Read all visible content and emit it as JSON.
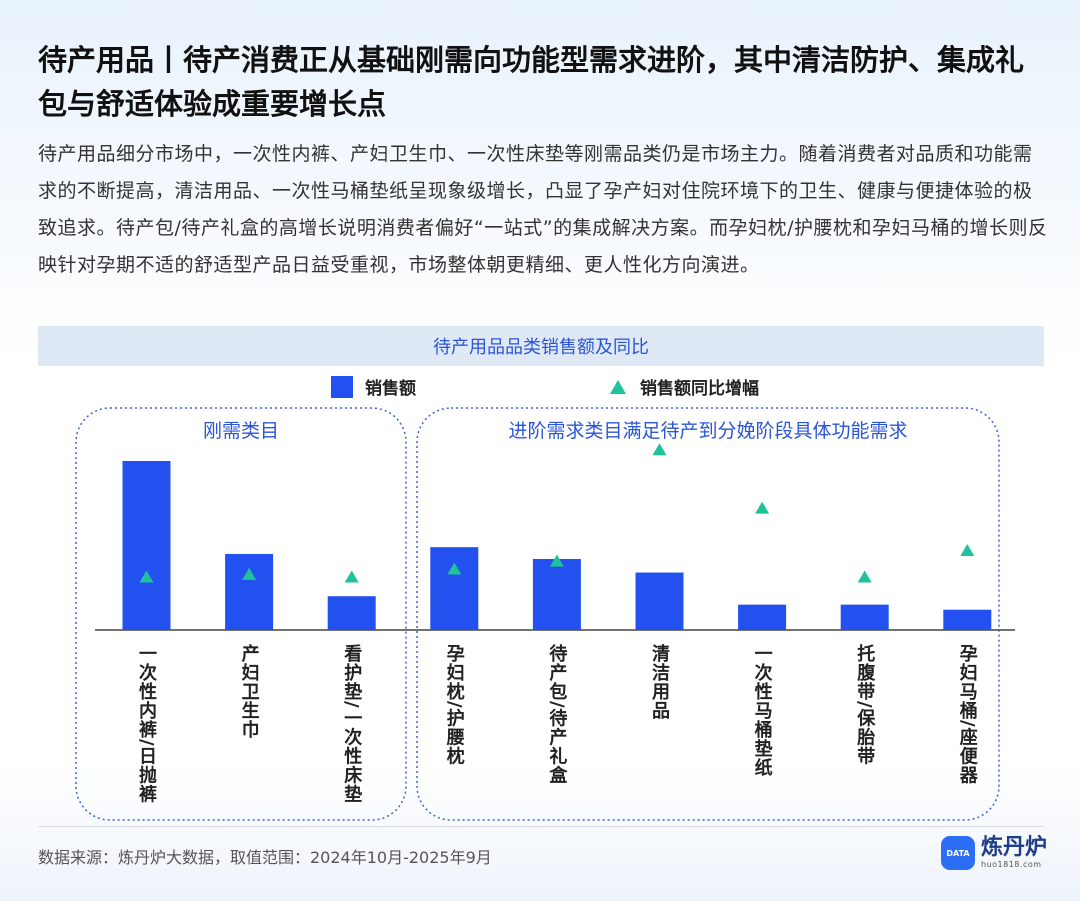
{
  "page": {
    "title": "待产用品丨待产消费正从基础刚需向功能型需求进阶，其中清洁防护、集成礼包与舒适体验成重要增长点",
    "description": "待产用品细分市场中，一次性内裤、产妇卫生巾、一次性床垫等刚需品类仍是市场主力。随着消费者对品质和功能需求的不断提高，清洁用品、一次性马桶垫纸呈现象级增长，凸显了孕产妇对住院环境下的卫生、健康与便捷体验的极致追求。待产包/待产礼盒的高增长说明消费者偏好“一站式”的集成解决方案。而孕妇枕/护腰枕和孕妇马桶的增长则反映针对孕期不适的舒适型产品日益受重视，市场整体朝更精细、更人性化方向演进。",
    "source": "数据来源：炼丹炉大数据，取值范围：2024年10月-2025年9月",
    "logo_name": "炼丹炉",
    "logo_url": "huo1818.com",
    "logo_badge": "DATA"
  },
  "colors": {
    "bar": "#2251f0",
    "triangle": "#1fc29a",
    "accent": "#2b55d9",
    "group_border": "#3a63d6"
  },
  "chart_data": {
    "type": "bar",
    "title": "待产用品品类销售额及同比",
    "legend": [
      "销售额",
      "销售额同比增幅"
    ],
    "legend_position": "top",
    "groups": [
      {
        "label": "刚需类目",
        "categories": [
          "一次性内裤/日抛裤",
          "产妇卫生巾",
          "看护垫/一次性床垫"
        ]
      },
      {
        "label": "进阶需求类目满足待产到分娩阶段具体功能需求",
        "categories": [
          "孕妇枕/护腰枕",
          "待产包/待产礼盒",
          "清洁用品",
          "一次性马桶垫纸",
          "托腹带/保胎带",
          "孕妇马桶/座便器"
        ]
      }
    ],
    "categories": [
      "一次性内裤/日抛裤",
      "产妇卫生巾",
      "看护垫/一次性床垫",
      "孕妇枕/护腰枕",
      "待产包/待产礼盒",
      "清洁用品",
      "一次性马桶垫纸",
      "托腹带/保胎带",
      "孕妇马桶/座便器"
    ],
    "series": [
      {
        "name": "销售额",
        "type": "bar",
        "values": [
          100,
          45,
          20,
          49,
          42,
          34,
          15,
          15,
          12
        ]
      },
      {
        "name": "销售额同比增幅",
        "type": "scatter",
        "marker": "triangle",
        "values": [
          5,
          5.5,
          5,
          6.5,
          8,
          29,
          18,
          5,
          10
        ]
      }
    ],
    "y_axis_labels_shown": false,
    "grid": false
  }
}
